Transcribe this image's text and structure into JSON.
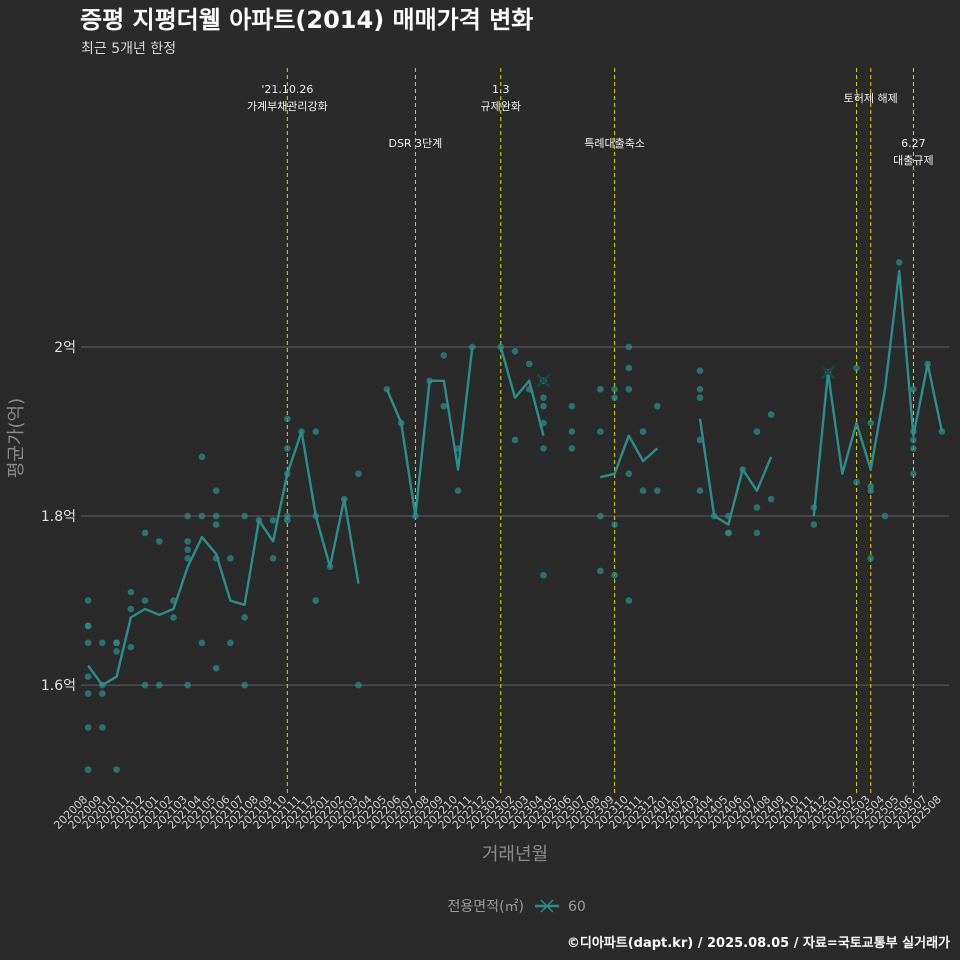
{
  "chart_data": {
    "type": "line",
    "title": "증평 지평더웰 아파트(2014) 매매가격 변화",
    "subtitle": "최근 5개년 한정",
    "xlabel": "거래년월",
    "ylabel": "평균가(억)",
    "ylim": [
      1.47,
      2.33
    ],
    "yticks": [
      {
        "value": 1.6,
        "label": "1.6억"
      },
      {
        "value": 1.8,
        "label": "1.8억"
      },
      {
        "value": 2.0,
        "label": "2억"
      }
    ],
    "grid": true,
    "categories": [
      "202008",
      "202009",
      "202010",
      "202011",
      "202012",
      "202101",
      "202102",
      "202103",
      "202104",
      "202105",
      "202106",
      "202107",
      "202108",
      "202109",
      "202110",
      "202111",
      "202112",
      "202201",
      "202202",
      "202203",
      "202204",
      "202205",
      "202206",
      "202207",
      "202208",
      "202209",
      "202210",
      "202211",
      "202212",
      "202301",
      "202302",
      "202303",
      "202304",
      "202305",
      "202306",
      "202307",
      "202308",
      "202309",
      "202310",
      "202311",
      "202312",
      "202401",
      "202402",
      "202403",
      "202404",
      "202405",
      "202406",
      "202407",
      "202408",
      "202409",
      "202410",
      "202411",
      "202412",
      "202501",
      "202502",
      "202503",
      "202504",
      "202505",
      "202506",
      "202507",
      "202508"
    ],
    "series": [
      {
        "name": "60",
        "color": "#2a8f8a",
        "values": [
          1.623,
          1.6,
          1.61,
          1.68,
          1.69,
          1.683,
          1.69,
          1.74,
          1.775,
          1.755,
          1.7,
          1.695,
          1.795,
          1.77,
          1.85,
          1.9,
          1.8,
          1.74,
          1.82,
          1.72,
          null,
          1.95,
          1.91,
          1.8,
          1.96,
          1.96,
          1.855,
          2.0,
          null,
          2.0,
          1.94,
          1.96,
          1.895,
          null,
          null,
          null,
          1.846,
          1.85,
          1.895,
          1.865,
          1.88,
          null,
          null,
          1.915,
          1.8,
          1.79,
          1.855,
          1.83,
          1.87,
          null,
          null,
          1.8,
          1.97,
          1.85,
          1.91,
          1.855,
          1.95,
          2.09,
          1.895,
          1.98,
          1.9
        ]
      }
    ],
    "points": [
      {
        "x": "202008",
        "y": 1.7
      },
      {
        "x": "202008",
        "y": 1.67
      },
      {
        "x": "202008",
        "y": 1.67
      },
      {
        "x": "202008",
        "y": 1.65
      },
      {
        "x": "202008",
        "y": 1.61
      },
      {
        "x": "202008",
        "y": 1.59
      },
      {
        "x": "202008",
        "y": 1.55
      },
      {
        "x": "202008",
        "y": 1.5
      },
      {
        "x": "202009",
        "y": 1.65
      },
      {
        "x": "202009",
        "y": 1.6
      },
      {
        "x": "202009",
        "y": 1.59
      },
      {
        "x": "202009",
        "y": 1.55
      },
      {
        "x": "202010",
        "y": 1.65
      },
      {
        "x": "202010",
        "y": 1.64
      },
      {
        "x": "202010",
        "y": 1.65
      },
      {
        "x": "202010",
        "y": 1.5
      },
      {
        "x": "202011",
        "y": 1.71
      },
      {
        "x": "202011",
        "y": 1.69
      },
      {
        "x": "202011",
        "y": 1.645
      },
      {
        "x": "202012",
        "y": 1.78
      },
      {
        "x": "202012",
        "y": 1.7
      },
      {
        "x": "202012",
        "y": 1.6
      },
      {
        "x": "202101",
        "y": 1.77
      },
      {
        "x": "202101",
        "y": 1.6
      },
      {
        "x": "202102",
        "y": 1.7
      },
      {
        "x": "202102",
        "y": 1.68
      },
      {
        "x": "202103",
        "y": 1.8
      },
      {
        "x": "202103",
        "y": 1.77
      },
      {
        "x": "202103",
        "y": 1.76
      },
      {
        "x": "202103",
        "y": 1.75
      },
      {
        "x": "202103",
        "y": 1.6
      },
      {
        "x": "202104",
        "y": 1.87
      },
      {
        "x": "202104",
        "y": 1.8
      },
      {
        "x": "202104",
        "y": 1.65
      },
      {
        "x": "202105",
        "y": 1.83
      },
      {
        "x": "202105",
        "y": 1.8
      },
      {
        "x": "202105",
        "y": 1.79
      },
      {
        "x": "202105",
        "y": 1.75
      },
      {
        "x": "202105",
        "y": 1.62
      },
      {
        "x": "202106",
        "y": 1.75
      },
      {
        "x": "202106",
        "y": 1.65
      },
      {
        "x": "202107",
        "y": 1.8
      },
      {
        "x": "202107",
        "y": 1.68
      },
      {
        "x": "202107",
        "y": 1.6
      },
      {
        "x": "202108",
        "y": 1.795
      },
      {
        "x": "202109",
        "y": 1.795
      },
      {
        "x": "202109",
        "y": 1.75
      },
      {
        "x": "202110",
        "y": 1.915
      },
      {
        "x": "202110",
        "y": 1.88
      },
      {
        "x": "202110",
        "y": 1.85
      },
      {
        "x": "202110",
        "y": 1.8
      },
      {
        "x": "202110",
        "y": 1.795
      },
      {
        "x": "202111",
        "y": 1.9
      },
      {
        "x": "202112",
        "y": 1.9
      },
      {
        "x": "202112",
        "y": 1.8
      },
      {
        "x": "202112",
        "y": 1.7
      },
      {
        "x": "202201",
        "y": 1.74
      },
      {
        "x": "202202",
        "y": 1.82
      },
      {
        "x": "202203",
        "y": 1.85
      },
      {
        "x": "202203",
        "y": 1.6
      },
      {
        "x": "202205",
        "y": 1.95
      },
      {
        "x": "202206",
        "y": 1.91
      },
      {
        "x": "202207",
        "y": 1.8
      },
      {
        "x": "202208",
        "y": 1.96
      },
      {
        "x": "202209",
        "y": 1.99
      },
      {
        "x": "202209",
        "y": 1.93
      },
      {
        "x": "202210",
        "y": 1.88
      },
      {
        "x": "202210",
        "y": 1.83
      },
      {
        "x": "202211",
        "y": 2.0
      },
      {
        "x": "202301",
        "y": 2.0
      },
      {
        "x": "202302",
        "y": 1.995
      },
      {
        "x": "202302",
        "y": 1.89
      },
      {
        "x": "202303",
        "y": 1.98
      },
      {
        "x": "202303",
        "y": 1.95
      },
      {
        "x": "202304",
        "y": 1.96
      },
      {
        "x": "202304",
        "y": 1.94
      },
      {
        "x": "202304",
        "y": 1.93
      },
      {
        "x": "202304",
        "y": 1.91
      },
      {
        "x": "202304",
        "y": 1.88
      },
      {
        "x": "202304",
        "y": 1.73
      },
      {
        "x": "202306",
        "y": 1.93
      },
      {
        "x": "202306",
        "y": 1.9
      },
      {
        "x": "202306",
        "y": 1.88
      },
      {
        "x": "202308",
        "y": 1.95
      },
      {
        "x": "202308",
        "y": 1.9
      },
      {
        "x": "202308",
        "y": 1.8
      },
      {
        "x": "202308",
        "y": 1.735
      },
      {
        "x": "202309",
        "y": 1.95
      },
      {
        "x": "202309",
        "y": 1.94
      },
      {
        "x": "202309",
        "y": 1.79
      },
      {
        "x": "202309",
        "y": 1.73
      },
      {
        "x": "202310",
        "y": 2.0
      },
      {
        "x": "202310",
        "y": 1.975
      },
      {
        "x": "202310",
        "y": 1.95
      },
      {
        "x": "202310",
        "y": 1.85
      },
      {
        "x": "202310",
        "y": 1.7
      },
      {
        "x": "202311",
        "y": 1.9
      },
      {
        "x": "202311",
        "y": 1.83
      },
      {
        "x": "202312",
        "y": 1.93
      },
      {
        "x": "202312",
        "y": 1.83
      },
      {
        "x": "202403",
        "y": 1.972
      },
      {
        "x": "202403",
        "y": 1.95
      },
      {
        "x": "202403",
        "y": 1.94
      },
      {
        "x": "202403",
        "y": 1.89
      },
      {
        "x": "202403",
        "y": 1.83
      },
      {
        "x": "202404",
        "y": 1.8
      },
      {
        "x": "202405",
        "y": 1.8
      },
      {
        "x": "202405",
        "y": 1.78
      },
      {
        "x": "202405",
        "y": 1.78
      },
      {
        "x": "202406",
        "y": 1.855
      },
      {
        "x": "202407",
        "y": 1.9
      },
      {
        "x": "202407",
        "y": 1.81
      },
      {
        "x": "202407",
        "y": 1.78
      },
      {
        "x": "202408",
        "y": 1.92
      },
      {
        "x": "202408",
        "y": 1.82
      },
      {
        "x": "202411",
        "y": 1.81
      },
      {
        "x": "202411",
        "y": 1.79
      },
      {
        "x": "202412",
        "y": 1.97
      },
      {
        "x": "202502",
        "y": 1.975
      },
      {
        "x": "202502",
        "y": 1.84
      },
      {
        "x": "202503",
        "y": 1.91
      },
      {
        "x": "202503",
        "y": 1.835
      },
      {
        "x": "202503",
        "y": 1.83
      },
      {
        "x": "202503",
        "y": 1.75
      },
      {
        "x": "202504",
        "y": 1.8
      },
      {
        "x": "202505",
        "y": 2.1
      },
      {
        "x": "202506",
        "y": 1.95
      },
      {
        "x": "202506",
        "y": 1.9
      },
      {
        "x": "202506",
        "y": 1.89
      },
      {
        "x": "202506",
        "y": 1.88
      },
      {
        "x": "202506",
        "y": 1.85
      },
      {
        "x": "202507",
        "y": 1.98
      },
      {
        "x": "202508",
        "y": 1.9
      }
    ],
    "x_markers": [
      {
        "x": "202304",
        "y": 1.96
      },
      {
        "x": "202412",
        "y": 1.97
      }
    ],
    "events": [
      {
        "x": "202110",
        "lines": [
          "'21.10.26",
          "가계부채관리강화"
        ],
        "row": 0
      },
      {
        "x": "202207",
        "lines": [
          "DSR 3단계"
        ],
        "row": 1
      },
      {
        "x": "202301",
        "lines": [
          "1.3",
          "규제완화"
        ],
        "row": 0
      },
      {
        "x": "202309",
        "lines": [
          "특례대출축소"
        ],
        "row": 1
      },
      {
        "x": "202502",
        "lines": [],
        "row": 0
      },
      {
        "x": "202503",
        "lines": [
          "토허제 해제"
        ],
        "row": 0
      },
      {
        "x": "202506",
        "lines": [
          "6.27",
          "대출규제"
        ],
        "row": 1
      }
    ],
    "event_line_color": "#d8d800",
    "legend": {
      "title": "전용면적(㎡)",
      "label": "60",
      "position": "bottom"
    }
  },
  "source_note": "©디아파트(dapt.kr) / 2025.08.05 / 자료=국토교통부 실거래가"
}
